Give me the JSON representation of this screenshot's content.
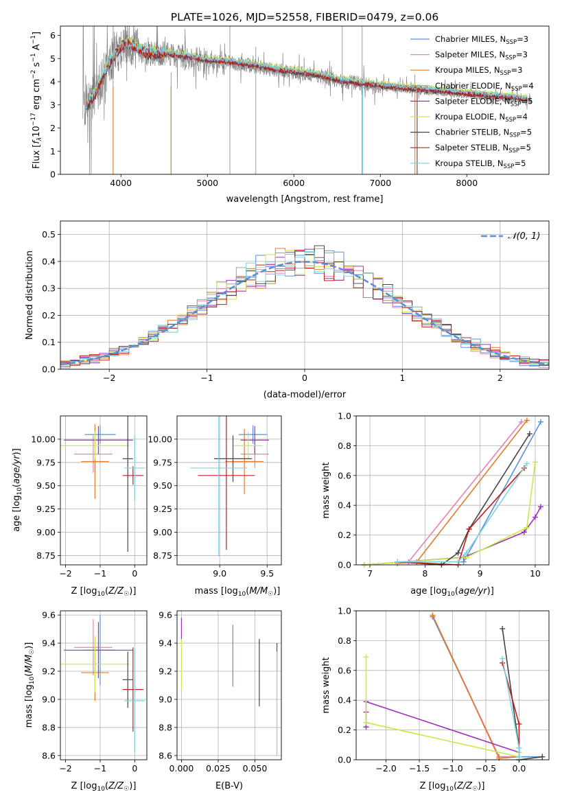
{
  "figure_title": "PLATE=1026, MJD=52558, FIBERID=0479, z=0.06",
  "colors": {
    "Chabrier MILES": "#5b8fd9",
    "Salpeter MILES": "#e87fb4",
    "Kroupa MILES": "#e07b28",
    "Chabrier ELODIE": "#a0a0a0",
    "Salpeter ELODIE": "#9b30b8",
    "Kroupa ELODIE": "#c9e84a",
    "Chabrier STELIB": "#444444",
    "Salpeter STELIB": "#c41a1a",
    "Kroupa STELIB": "#7dd3e0",
    "data": "#808080"
  },
  "chart_data": [
    {
      "id": "spectrum",
      "type": "line",
      "title": "PLATE=1026, MJD=52558, FIBERID=0479, z=0.06",
      "xlabel": "wavelength [Angstrom, rest frame]",
      "ylabel": "Flux [f_λ 10^-17 erg cm^-2 s^-1 A^-1]",
      "xlim": [
        3300,
        8950
      ],
      "ylim": [
        0,
        6.4
      ],
      "xticks": [
        4000,
        5000,
        6000,
        7000,
        8000
      ],
      "yticks": [
        0,
        1,
        2,
        3,
        4,
        5,
        6
      ],
      "legend_position": "top-right",
      "legend": [
        {
          "name": "Chabrier MILES",
          "nssp": "3"
        },
        {
          "name": "Salpeter MILES",
          "nssp": "3"
        },
        {
          "name": "Kroupa MILES",
          "nssp": "3"
        },
        {
          "name": "Chabrier ELODIE",
          "nssp": "4"
        },
        {
          "name": "Salpeter ELODIE",
          "nssp": "5"
        },
        {
          "name": "Kroupa ELODIE",
          "nssp": "4"
        },
        {
          "name": "Chabrier STELIB",
          "nssp": "5"
        },
        {
          "name": "Salpeter STELIB",
          "nssp": "5"
        },
        {
          "name": "Kroupa STELIB",
          "nssp": "5"
        }
      ],
      "continuum": {
        "x": [
          3600,
          3700,
          3800,
          3900,
          4000,
          4100,
          4300,
          4500,
          4700,
          5000,
          5200,
          5500,
          5800,
          6000,
          6300,
          6500,
          6800,
          7000,
          7300,
          7600,
          7900,
          8200,
          8500,
          8700
        ],
        "y": [
          2.9,
          3.4,
          4.3,
          5.0,
          5.5,
          5.6,
          5.2,
          5.2,
          5.1,
          4.9,
          4.85,
          4.7,
          4.5,
          4.4,
          4.25,
          4.05,
          3.9,
          3.8,
          3.7,
          3.6,
          3.5,
          3.4,
          3.3,
          3.2
        ]
      },
      "model_offsets": [
        0.05,
        -0.04,
        0.02,
        -0.08,
        0.08,
        0.15,
        -0.02,
        0.03,
        0.1
      ]
    },
    {
      "id": "residuals",
      "type": "line",
      "xlabel": "(data-model)/error",
      "ylabel": "Normed distribution",
      "xlim": [
        -2.5,
        2.5
      ],
      "ylim": [
        0,
        0.55
      ],
      "xticks": [
        -2,
        -1,
        0,
        1,
        2
      ],
      "yticks": [
        0.0,
        0.1,
        0.2,
        0.3,
        0.4,
        0.5
      ],
      "legend_position": "top-right",
      "gaussian_label": "𝒩(0, 1)",
      "bin_width": 0.1
    },
    {
      "id": "age_vs_Z",
      "type": "scatter",
      "xlabel": "Z [log10(Z/Z☉)]",
      "ylabel": "age  [log10(age/yr)]",
      "xlim": [
        -2.15,
        0.35
      ],
      "ylim": [
        8.65,
        10.25
      ],
      "xticks": [
        -2,
        -1,
        0
      ],
      "yticks": [
        8.75,
        9.0,
        9.25,
        9.5,
        9.75,
        10.0
      ],
      "points": [
        {
          "model": "Chabrier MILES",
          "x": -1.0,
          "y": 10.05,
          "xerr": 0.45,
          "yerr": 0.1
        },
        {
          "model": "Salpeter MILES",
          "x": -1.2,
          "y": 9.84,
          "xerr": 0.55,
          "yerr": 0.2
        },
        {
          "model": "Kroupa MILES",
          "x": -1.15,
          "y": 9.76,
          "xerr": 0.4,
          "yerr": 0.4
        },
        {
          "model": "Salpeter ELODIE",
          "x": -1.05,
          "y": 9.99,
          "xerr": 1.0,
          "yerr": 0.15
        },
        {
          "model": "Kroupa ELODIE",
          "x": -1.15,
          "y": 9.93,
          "xerr": 1.0,
          "yerr": 0.15
        },
        {
          "model": "Chabrier STELIB",
          "x": -0.2,
          "y": 9.79,
          "xerr": 0.15,
          "yerr": 1.0
        },
        {
          "model": "Salpeter STELIB",
          "x": -0.05,
          "y": 9.61,
          "xerr": 0.3,
          "yerr": 0.1
        },
        {
          "model": "Kroupa STELIB",
          "x": 0.0,
          "y": 9.69,
          "xerr": 0.3,
          "yerr": 0.35
        }
      ]
    },
    {
      "id": "age_vs_mass",
      "type": "scatter",
      "xlabel": "mass [log10(M/M☉)]",
      "ylabel": "",
      "xlim": [
        8.55,
        9.65
      ],
      "ylim": [
        8.65,
        10.25
      ],
      "xticks": [
        9.0,
        9.5
      ],
      "yticks": [
        8.75,
        9.0,
        9.25,
        9.5,
        9.75,
        10.0
      ],
      "points": [
        {
          "model": "Chabrier MILES",
          "x": 9.35,
          "y": 10.05,
          "xerr": 0.15,
          "yerr": 0.1
        },
        {
          "model": "Salpeter MILES",
          "x": 9.37,
          "y": 9.84,
          "xerr": 0.15,
          "yerr": 0.15
        },
        {
          "model": "Kroupa MILES",
          "x": 9.26,
          "y": 9.76,
          "xerr": 0.2,
          "yerr": 0.35
        },
        {
          "model": "Salpeter ELODIE",
          "x": 9.37,
          "y": 9.99,
          "xerr": 0.15,
          "yerr": 0.15
        },
        {
          "model": "Kroupa ELODIE",
          "x": 9.3,
          "y": 9.93,
          "xerr": 0.15,
          "yerr": 0.15
        },
        {
          "model": "Chabrier STELIB",
          "x": 9.14,
          "y": 9.79,
          "xerr": 0.2,
          "yerr": 0.25
        },
        {
          "model": "Salpeter STELIB",
          "x": 9.07,
          "y": 9.61,
          "xerr": 0.3,
          "yerr": 0.8
        },
        {
          "model": "Kroupa STELIB",
          "x": 8.99,
          "y": 9.69,
          "xerr": 0.3,
          "yerr": 0.95
        }
      ]
    },
    {
      "id": "massweight_vs_age",
      "type": "line",
      "xlabel": "age  [log10(age/yr)]",
      "ylabel": "mass weight",
      "xlim": [
        6.75,
        10.25
      ],
      "ylim": [
        0,
        1.0
      ],
      "xticks": [
        7,
        8,
        9,
        10
      ],
      "yticks": [
        0.0,
        0.2,
        0.4,
        0.6,
        0.8,
        1.0
      ],
      "series": [
        {
          "model": "Chabrier MILES",
          "x": [
            7.5,
            8.7,
            10.1
          ],
          "y": [
            0.02,
            0.02,
            0.96
          ]
        },
        {
          "model": "Salpeter MILES",
          "x": [
            7.5,
            7.7,
            9.75
          ],
          "y": [
            0.02,
            0.02,
            0.96
          ]
        },
        {
          "model": "Kroupa MILES",
          "x": [
            7.5,
            7.85,
            9.85
          ],
          "y": [
            0.01,
            0.02,
            0.97
          ]
        },
        {
          "model": "Salpeter ELODIE",
          "x": [
            6.9,
            8.7,
            9.8,
            10.0,
            10.1
          ],
          "y": [
            0.0,
            0.05,
            0.22,
            0.32,
            0.39
          ]
        },
        {
          "model": "Kroupa ELODIE",
          "x": [
            6.9,
            8.75,
            9.85,
            10.0
          ],
          "y": [
            0.0,
            0.05,
            0.25,
            0.69
          ]
        },
        {
          "model": "Chabrier STELIB",
          "x": [
            7.5,
            8.3,
            8.6,
            8.8,
            9.9
          ],
          "y": [
            0.02,
            0.0,
            0.08,
            0.24,
            0.88
          ]
        },
        {
          "model": "Salpeter STELIB",
          "x": [
            7.5,
            8.6,
            8.8,
            9.8
          ],
          "y": [
            0.02,
            0.0,
            0.24,
            0.65
          ]
        },
        {
          "model": "Kroupa STELIB",
          "x": [
            7.5,
            8.6,
            8.75,
            9.85
          ],
          "y": [
            0.02,
            0.02,
            0.08,
            0.68
          ]
        }
      ]
    },
    {
      "id": "mass_vs_Z",
      "type": "scatter",
      "xlabel": "Z [log10(Z/Z☉)]",
      "ylabel": "mass [log10(M/M☉)]",
      "xlim": [
        -2.15,
        0.35
      ],
      "ylim": [
        8.57,
        9.63
      ],
      "xticks": [
        -2,
        -1,
        0
      ],
      "yticks": [
        8.6,
        8.8,
        9.0,
        9.2,
        9.4,
        9.6
      ],
      "points": [
        {
          "model": "Chabrier MILES",
          "x": -1.0,
          "y": 9.35,
          "xerr": 0.45,
          "yerr": 0.25
        },
        {
          "model": "Salpeter MILES",
          "x": -1.2,
          "y": 9.37,
          "xerr": 0.55,
          "yerr": 0.2
        },
        {
          "model": "Kroupa MILES",
          "x": -1.15,
          "y": 9.19,
          "xerr": 0.4,
          "yerr": 0.2
        },
        {
          "model": "Salpeter ELODIE",
          "x": -1.05,
          "y": 9.35,
          "xerr": 1.0,
          "yerr": 0.2
        },
        {
          "model": "Kroupa ELODIE",
          "x": -1.15,
          "y": 9.25,
          "xerr": 1.0,
          "yerr": 0.2
        },
        {
          "model": "Chabrier STELIB",
          "x": -0.2,
          "y": 9.14,
          "xerr": 0.15,
          "yerr": 0.2
        },
        {
          "model": "Salpeter STELIB",
          "x": -0.05,
          "y": 9.07,
          "xerr": 0.3,
          "yerr": 0.3
        },
        {
          "model": "Kroupa STELIB",
          "x": 0.0,
          "y": 8.99,
          "xerr": 0.3,
          "yerr": 0.37
        }
      ]
    },
    {
      "id": "mass_vs_ebv",
      "type": "scatter",
      "xlabel": "E(B-V)",
      "ylabel": "",
      "xlim": [
        -0.003,
        0.068
      ],
      "ylim": [
        8.57,
        9.63
      ],
      "xticks": [
        0.0,
        0.025,
        0.05
      ],
      "xtick_labels": [
        "0.000",
        "0.025",
        "0.050"
      ],
      "yticks": [
        8.6,
        8.8,
        9.0,
        9.2,
        9.4,
        9.6
      ],
      "points": [
        {
          "model": "Chabrier MILES",
          "x": 0.035,
          "y": 9.31,
          "xerr": 0,
          "yerr": 0.22
        },
        {
          "model": "Salpeter ELODIE",
          "x": 0.0,
          "y": 9.5,
          "xerr": 0,
          "yerr": 0.08
        },
        {
          "model": "Kroupa ELODIE",
          "x": 0.0,
          "y": 9.25,
          "xerr": 0,
          "yerr": 0.18
        },
        {
          "model": "Chabrier STELIB",
          "x": 0.053,
          "y": 9.19,
          "xerr": 0,
          "yerr": 0.24
        },
        {
          "model": "Salpeter STELIB",
          "x": 0.065,
          "y": 9.3,
          "xerr": 0,
          "yerr": 0.1
        },
        {
          "model": "Kroupa STELIB",
          "x": 0.065,
          "y": 8.97,
          "xerr": 0,
          "yerr": 0.37
        }
      ]
    },
    {
      "id": "massweight_vs_Z",
      "type": "line",
      "xlabel": "Z [log10(Z/Z☉)]",
      "ylabel": "mass weight",
      "xlim": [
        -2.45,
        0.45
      ],
      "ylim": [
        0,
        1.0
      ],
      "xticks": [
        -2.0,
        -1.5,
        -1.0,
        -0.5,
        0.0
      ],
      "xtick_labels": [
        "−2.0",
        "−1.5",
        "−1.0",
        "−0.5",
        "0.0"
      ],
      "yticks": [
        0.0,
        0.2,
        0.4,
        0.6,
        0.8,
        1.0
      ],
      "series": [
        {
          "model": "Chabrier MILES",
          "x": [
            -1.3,
            -0.3,
            0.35
          ],
          "y": [
            0.96,
            0.02,
            0.02
          ]
        },
        {
          "model": "Salpeter MILES",
          "x": [
            -1.3,
            -0.3,
            0.0
          ],
          "y": [
            0.97,
            0.02,
            0.02
          ]
        },
        {
          "model": "Kroupa MILES",
          "x": [
            -1.3,
            -0.3,
            0.0
          ],
          "y": [
            0.97,
            0.01,
            0.02
          ]
        },
        {
          "model": "Salpeter ELODIE",
          "x": [
            -2.3,
            -2.3,
            -2.3,
            0.0
          ],
          "y": [
            0.22,
            0.32,
            0.39,
            0.05
          ]
        },
        {
          "model": "Kroupa ELODIE",
          "x": [
            -2.3,
            -2.3,
            0.0,
            0.0
          ],
          "y": [
            0.69,
            0.25,
            0.02,
            0.05
          ]
        },
        {
          "model": "Chabrier STELIB",
          "x": [
            -0.25,
            0.0,
            0.0,
            0.35
          ],
          "y": [
            0.88,
            0.08,
            0.0,
            0.02
          ]
        },
        {
          "model": "Salpeter STELIB",
          "x": [
            -0.25,
            0.0,
            0.0
          ],
          "y": [
            0.65,
            0.24,
            0.0
          ]
        },
        {
          "model": "Kroupa STELIB",
          "x": [
            -0.25,
            0.0,
            0.0,
            0.0
          ],
          "y": [
            0.68,
            0.08,
            0.02,
            0.0
          ]
        }
      ]
    }
  ]
}
